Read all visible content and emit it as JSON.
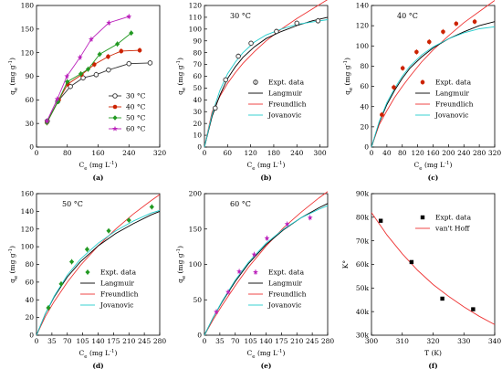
{
  "colors": {
    "series_30": "#333333",
    "series_40": "#cc2200",
    "series_50": "#229922",
    "series_60": "#bb22bb",
    "langmuir": "#000000",
    "freundlich": "#ee3333",
    "jovanovic": "#22cccc",
    "vant_hoff": "#ee3333"
  },
  "chart_data": [
    {
      "panel": "(a)",
      "type": "line",
      "xlabel": "Ce (mg L-1)",
      "ylabel": "qe (mg g-1)",
      "xlim": [
        0,
        320
      ],
      "ylim": [
        0,
        180
      ],
      "xticks": [
        "0",
        "80",
        "160",
        "240",
        "320"
      ],
      "yticks": [
        "0",
        "30",
        "60",
        "90",
        "120",
        "150",
        "180"
      ],
      "legend": "bottom-right",
      "series": [
        {
          "name": "30 °C",
          "x": [
            28,
            55,
            88,
            121,
            155,
            187,
            240,
            295
          ],
          "y": [
            33,
            58,
            77,
            88,
            92,
            98,
            106,
            107
          ]
        },
        {
          "name": "40 °C",
          "x": [
            27,
            58,
            81,
            117,
            150,
            186,
            220,
            268
          ],
          "y": [
            31,
            60,
            80,
            92,
            105,
            115,
            122,
            123
          ]
        },
        {
          "name": "50 °C",
          "x": [
            27,
            56,
            80,
            115,
            134,
            164,
            210,
            246
          ],
          "y": [
            31,
            58,
            83,
            93,
            99,
            118,
            131,
            145
          ]
        },
        {
          "name": "60 °C",
          "x": [
            27,
            54,
            79,
            113,
            142,
            188,
            240
          ],
          "y": [
            33,
            61,
            90,
            114,
            137,
            158,
            166
          ]
        }
      ]
    },
    {
      "panel": "(b)",
      "type": "scatter",
      "annotation": "30 °C",
      "xlabel": "Ce (mg L-1)",
      "ylabel": "qe (mg g-1)",
      "xlim": [
        0,
        320
      ],
      "ylim": [
        0,
        120
      ],
      "xticks": [
        "0",
        "60",
        "120",
        "180",
        "240",
        "300"
      ],
      "yticks": [
        "0",
        "10",
        "20",
        "30",
        "40",
        "50",
        "60",
        "70",
        "80",
        "90",
        "100",
        "110",
        "120"
      ],
      "legend": "center-right",
      "legend_entries": [
        "Expt. data",
        "Langmuir",
        "Freundlich",
        "Jovanovic"
      ],
      "points": {
        "x": [
          28,
          55,
          88,
          121,
          187,
          240,
          295
        ],
        "y": [
          33,
          57,
          77,
          88,
          98,
          105,
          107
        ]
      },
      "curves": {
        "x": [
          0,
          20,
          40,
          60,
          80,
          100,
          130,
          160,
          200,
          240,
          280,
          320
        ],
        "langmuir": [
          0,
          26,
          44,
          58,
          68,
          76,
          85,
          92,
          98,
          103,
          107,
          110
        ],
        "freundlich": [
          0,
          30,
          43,
          54,
          63,
          71,
          81,
          90,
          100,
          109,
          117,
          125
        ],
        "jovanovic": [
          0,
          28,
          48,
          62,
          72,
          80,
          89,
          95,
          100,
          104,
          106,
          108
        ]
      }
    },
    {
      "panel": "(c)",
      "type": "scatter",
      "annotation": "40 °C",
      "xlabel": "Ce (mg L-1)",
      "ylabel": "qe (mg g-1)",
      "xlim": [
        0,
        320
      ],
      "ylim": [
        0,
        140
      ],
      "xticks": [
        "0",
        "40",
        "80",
        "120",
        "160",
        "200",
        "240",
        "280",
        "320"
      ],
      "yticks": [
        "0",
        "20",
        "40",
        "60",
        "80",
        "100",
        "120",
        "140"
      ],
      "legend": "center-right",
      "legend_entries": [
        "Expt. data",
        "Langmuir",
        "Freundlich",
        "Jovanovic"
      ],
      "points": {
        "x": [
          27,
          58,
          81,
          117,
          150,
          186,
          220,
          268
        ],
        "y": [
          32,
          59,
          78,
          94,
          104,
          114,
          122,
          124
        ]
      },
      "curves": {
        "x": [
          0,
          20,
          40,
          60,
          80,
          100,
          130,
          160,
          200,
          240,
          280,
          320
        ],
        "langmuir": [
          0,
          24,
          42,
          56,
          68,
          78,
          89,
          98,
          107,
          114,
          120,
          124
        ],
        "freundlich": [
          0,
          22,
          36,
          49,
          60,
          70,
          84,
          96,
          110,
          123,
          134,
          145
        ],
        "jovanovic": [
          0,
          25,
          44,
          58,
          70,
          80,
          91,
          99,
          107,
          113,
          117,
          119
        ]
      }
    },
    {
      "panel": "(d)",
      "type": "scatter",
      "annotation": "50 °C",
      "xlabel": "Ce (mg L-1)",
      "ylabel": "qe (mg g-1)",
      "xlim": [
        0,
        280
      ],
      "ylim": [
        0,
        160
      ],
      "xticks": [
        "0",
        "35",
        "70",
        "105",
        "140",
        "175",
        "210",
        "245",
        "280"
      ],
      "yticks": [
        "0",
        "20",
        "40",
        "60",
        "80",
        "100",
        "120",
        "140",
        "160"
      ],
      "legend": "bottom-right",
      "legend_entries": [
        "Expt. data",
        "Langmuir",
        "Freundlich",
        "Jovanovic"
      ],
      "points": {
        "x": [
          27,
          56,
          80,
          115,
          164,
          210,
          262
        ],
        "y": [
          31,
          58,
          83,
          97,
          118,
          130,
          145
        ]
      },
      "curves": {
        "x": [
          0,
          20,
          40,
          70,
          100,
          140,
          180,
          220,
          260,
          280
        ],
        "langmuir": [
          0,
          24,
          43,
          66,
          83,
          101,
          115,
          126,
          136,
          140
        ],
        "freundlich": [
          0,
          21,
          38,
          60,
          79,
          101,
          120,
          137,
          152,
          159
        ],
        "jovanovic": [
          0,
          24,
          44,
          68,
          86,
          104,
          118,
          129,
          138,
          141
        ]
      }
    },
    {
      "panel": "(e)",
      "type": "scatter",
      "annotation": "60 °C",
      "xlabel": "Ce (mg L-1)",
      "ylabel": "qe (mg g-1)",
      "xlim": [
        0,
        280
      ],
      "ylim": [
        0,
        200
      ],
      "xticks": [
        "0",
        "35",
        "70",
        "105",
        "140",
        "175",
        "210",
        "245",
        "280"
      ],
      "yticks": [
        "0",
        "50",
        "100",
        "150",
        "200"
      ],
      "legend": "bottom-right",
      "legend_entries": [
        "Expt. data",
        "Langmuir",
        "Freundlich",
        "Jovanovic"
      ],
      "points": {
        "x": [
          27,
          54,
          79,
          113,
          142,
          188,
          240
        ],
        "y": [
          33,
          61,
          90,
          114,
          137,
          157,
          166
        ]
      },
      "curves": {
        "x": [
          0,
          20,
          40,
          70,
          100,
          140,
          180,
          220,
          260,
          280
        ],
        "langmuir": [
          0,
          25,
          47,
          76,
          101,
          128,
          149,
          166,
          180,
          186
        ],
        "freundlich": [
          0,
          22,
          42,
          70,
          96,
          126,
          152,
          174,
          194,
          203
        ],
        "jovanovic": [
          0,
          25,
          48,
          78,
          103,
          130,
          150,
          166,
          178,
          183
        ]
      }
    },
    {
      "panel": "(f)",
      "type": "scatter",
      "xlabel": "T (K)",
      "ylabel": "K°",
      "xlim": [
        300,
        340
      ],
      "ylim": [
        30000,
        90000
      ],
      "xticks": [
        "300",
        "310",
        "320",
        "330",
        "340"
      ],
      "yticks": [
        "30k",
        "40k",
        "50k",
        "60k",
        "70k",
        "80k",
        "90k"
      ],
      "legend": "top-right",
      "legend_entries": [
        "Expt. data",
        "van't Hoff"
      ],
      "points": {
        "x": [
          303,
          313,
          323,
          333
        ],
        "y": [
          78500,
          61000,
          45500,
          41000
        ]
      },
      "curve": {
        "x": [
          300,
          305,
          310,
          315,
          320,
          325,
          330,
          335,
          340
        ],
        "y": [
          82000,
          72500,
          64500,
          57500,
          51500,
          46500,
          42000,
          38000,
          34500
        ]
      }
    }
  ]
}
